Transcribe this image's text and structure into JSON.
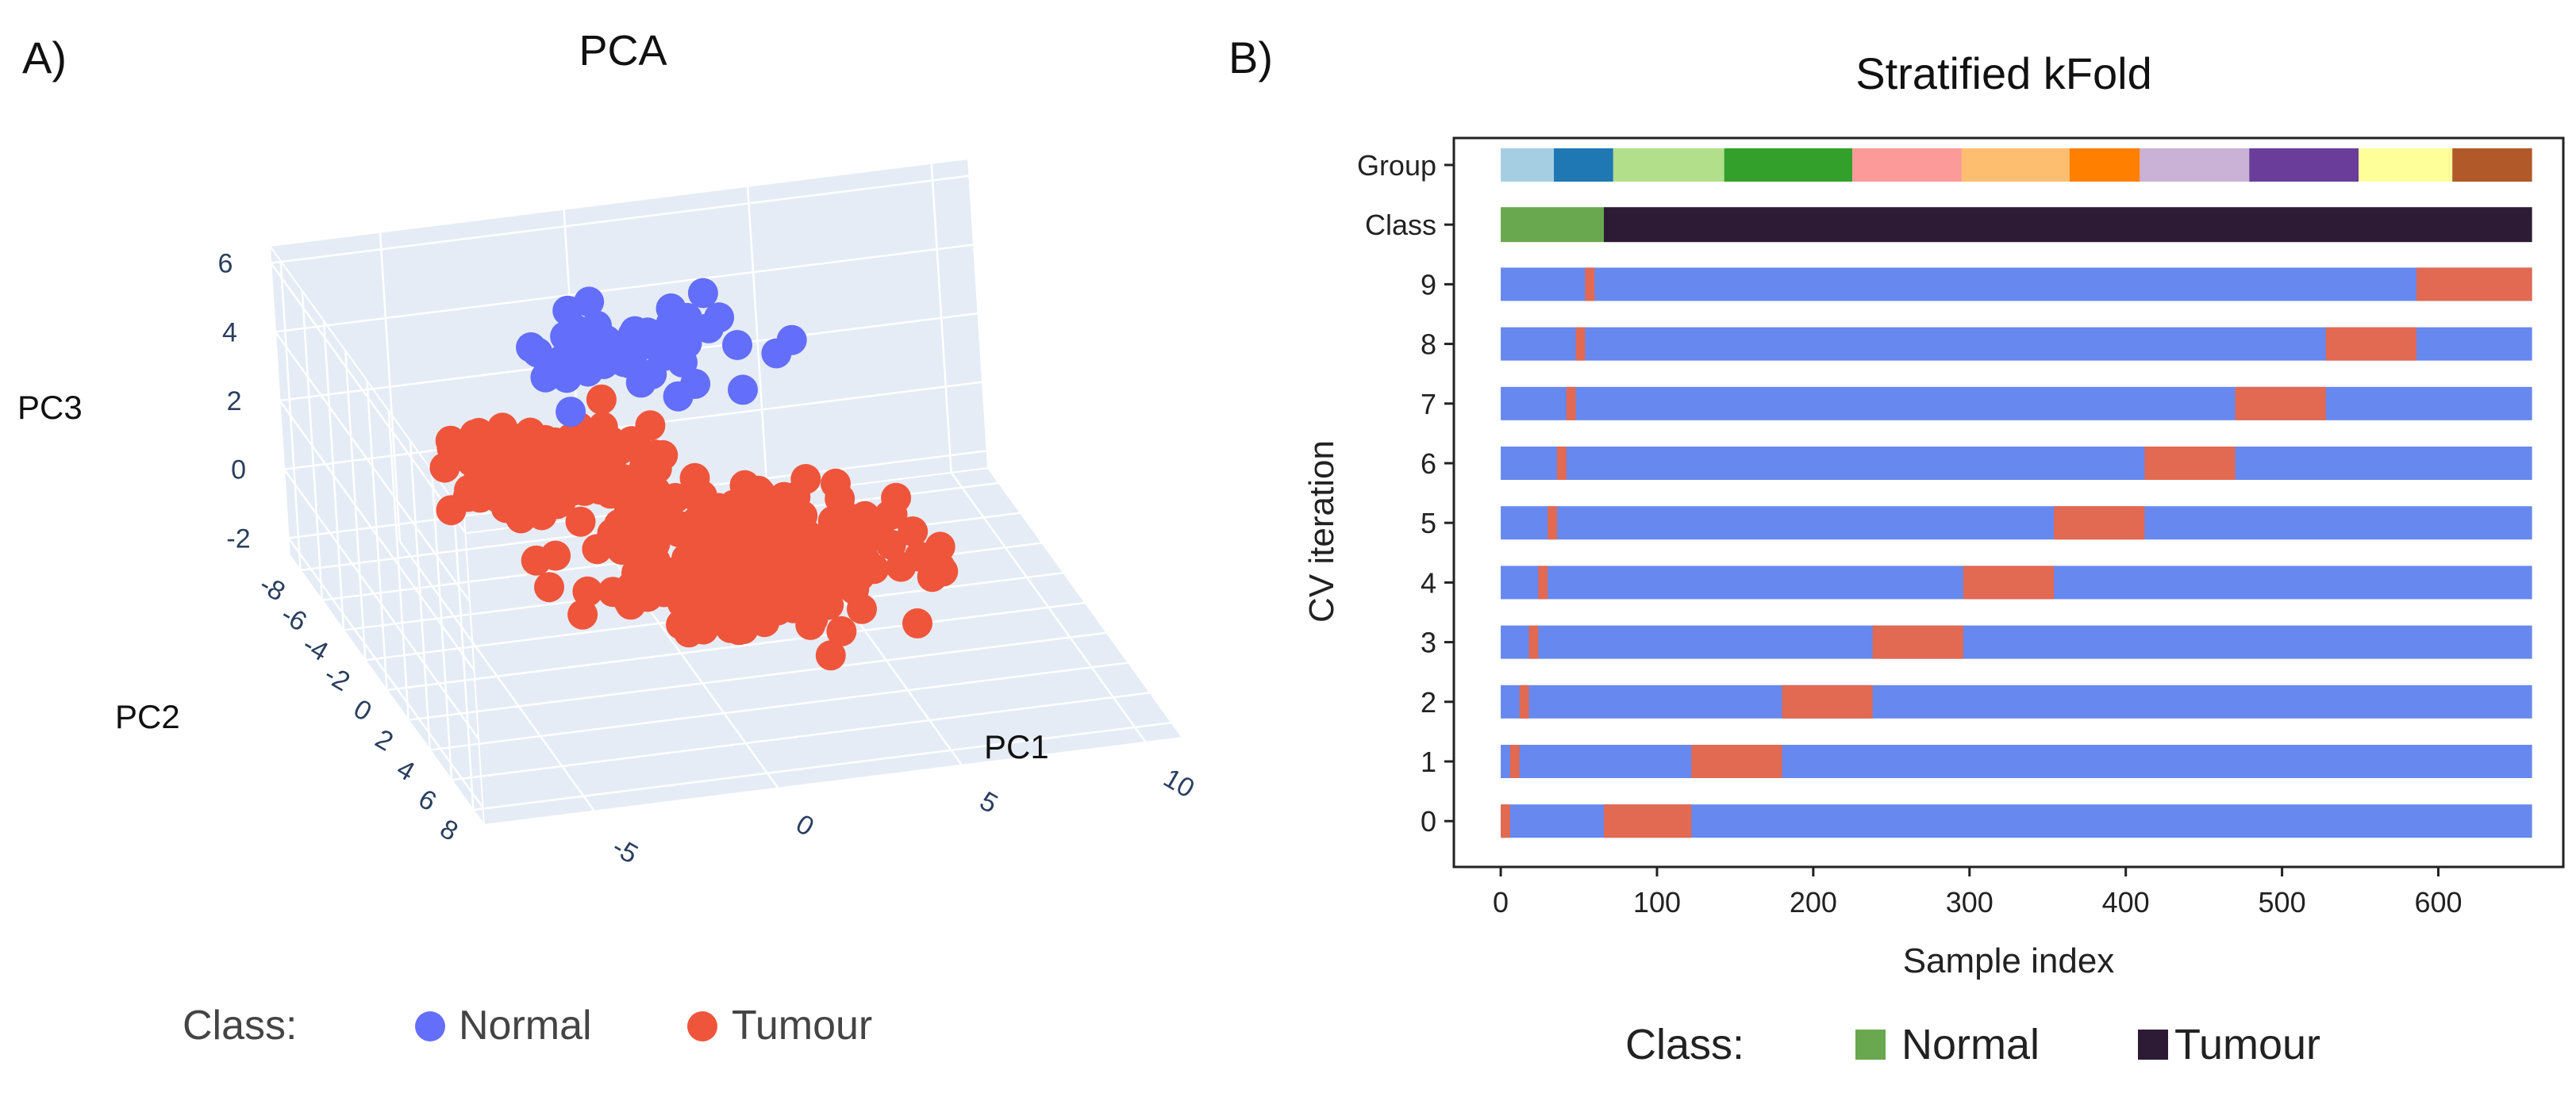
{
  "panel_labels": {
    "a": "A)",
    "b": "B)"
  },
  "chart_data": [
    {
      "id": "pca",
      "type": "scatter",
      "projection": "3d",
      "title": "PCA",
      "axes": {
        "x": {
          "label": "PC1",
          "ticks": [
            -5,
            0,
            5,
            10
          ],
          "range": [
            -8,
            11
          ]
        },
        "y": {
          "label": "PC2",
          "ticks": [
            -8,
            -6,
            -4,
            -2,
            0,
            2,
            4,
            6,
            8
          ],
          "range": [
            -9,
            9
          ]
        },
        "z": {
          "label": "PC3",
          "ticks": [
            -2,
            0,
            2,
            4,
            6
          ],
          "range": [
            -2.5,
            6.5
          ]
        }
      },
      "legend": {
        "title": "Class:",
        "placement": "bottom",
        "items": [
          {
            "name": "Normal",
            "color": "#636efa"
          },
          {
            "name": "Tumour",
            "color": "#ef553b"
          }
        ]
      },
      "series": [
        {
          "name": "Normal",
          "color": "#636efa",
          "clusters": [
            {
              "n": 55,
              "center": [
                0.5,
                -4.5,
                4.5
              ],
              "spread": [
                3.2,
                2.0,
                1.0
              ],
              "seed": 11
            }
          ]
        },
        {
          "name": "Tumour",
          "color": "#ef553b",
          "clusters": [
            {
              "n": 300,
              "center": [
                1.5,
                1.5,
                0.8
              ],
              "spread": [
                4.0,
                3.2,
                1.2
              ],
              "seed": 23
            },
            {
              "n": 120,
              "center": [
                -2.0,
                -3.5,
                1.5
              ],
              "spread": [
                3.0,
                2.0,
                1.0
              ],
              "seed": 37
            }
          ]
        }
      ],
      "grid": true,
      "background_color": "#e5ecf6"
    },
    {
      "id": "cv",
      "type": "bar",
      "orientation": "horizontal",
      "title": "Stratified kFold",
      "xlabel": "Sample index",
      "ylabel": "CV iteration",
      "xlim": [
        -30,
        680
      ],
      "xticks": [
        0,
        100,
        200,
        300,
        400,
        500,
        600
      ],
      "n_samples": 660,
      "rows": [
        "Group",
        "Class",
        "9",
        "8",
        "7",
        "6",
        "5",
        "4",
        "3",
        "2",
        "1",
        "0"
      ],
      "train_color": "#6788ee",
      "test_color": "#e26952",
      "cv_iterations": [
        {
          "label": "0",
          "test_segments": [
            [
              0,
              6
            ],
            [
              66,
              122
            ]
          ]
        },
        {
          "label": "1",
          "test_segments": [
            [
              6,
              12
            ],
            [
              122,
              180
            ]
          ]
        },
        {
          "label": "2",
          "test_segments": [
            [
              12,
              18
            ],
            [
              180,
              238
            ]
          ]
        },
        {
          "label": "3",
          "test_segments": [
            [
              18,
              24
            ],
            [
              238,
              296
            ]
          ]
        },
        {
          "label": "4",
          "test_segments": [
            [
              24,
              30
            ],
            [
              296,
              354
            ]
          ]
        },
        {
          "label": "5",
          "test_segments": [
            [
              30,
              36
            ],
            [
              354,
              412
            ]
          ]
        },
        {
          "label": "6",
          "test_segments": [
            [
              36,
              42
            ],
            [
              412,
              470
            ]
          ]
        },
        {
          "label": "7",
          "test_segments": [
            [
              42,
              48
            ],
            [
              470,
              528
            ]
          ]
        },
        {
          "label": "8",
          "test_segments": [
            [
              48,
              54
            ],
            [
              528,
              586
            ]
          ]
        },
        {
          "label": "9",
          "test_segments": [
            [
              54,
              60
            ],
            [
              586,
              660
            ]
          ]
        }
      ],
      "class_segments": [
        {
          "class": "Normal",
          "start": 0,
          "end": 66,
          "color": "#6aa84f"
        },
        {
          "class": "Tumour",
          "start": 66,
          "end": 660,
          "color": "#2d1b36"
        }
      ],
      "group_segments": [
        {
          "start": 0,
          "end": 34,
          "color": "#a6cee3"
        },
        {
          "start": 34,
          "end": 72,
          "color": "#1f78b4"
        },
        {
          "start": 72,
          "end": 143,
          "color": "#b2df8a"
        },
        {
          "start": 143,
          "end": 225,
          "color": "#33a02c"
        },
        {
          "start": 225,
          "end": 295,
          "color": "#fb9a99"
        },
        {
          "start": 295,
          "end": 364,
          "color": "#fdbf6f"
        },
        {
          "start": 364,
          "end": 409,
          "color": "#ff7f00"
        },
        {
          "start": 409,
          "end": 479,
          "color": "#cab2d6"
        },
        {
          "start": 479,
          "end": 549,
          "color": "#6a3d9a"
        },
        {
          "start": 549,
          "end": 609,
          "color": "#ffff99"
        },
        {
          "start": 609,
          "end": 660,
          "color": "#b15928"
        }
      ],
      "legend": {
        "title": "Class:",
        "placement": "bottom",
        "items": [
          {
            "name": "Normal",
            "color": "#6aa84f"
          },
          {
            "name": "Tumour",
            "color": "#2d1b36"
          }
        ]
      }
    }
  ]
}
